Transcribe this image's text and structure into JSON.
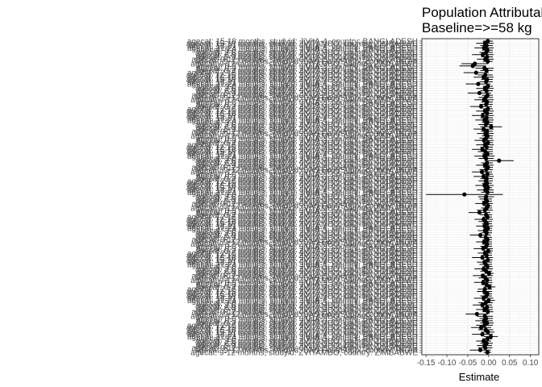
{
  "chart_data": {
    "type": "scatter",
    "title_lines": [
      "Population Attributable",
      "Baseline=>=58 kg"
    ],
    "xlabel": "Estimate",
    "ylabel": "",
    "xlim": [
      -0.16,
      0.12
    ],
    "xticks": [
      -0.15,
      -0.1,
      -0.05,
      0.0,
      0.05,
      0.1
    ],
    "xtick_labels": [
      "-0.15",
      "-0.10",
      "-0.05",
      "0.00",
      "0.05",
      "0.10"
    ],
    "grid": true,
    "error_bars": true,
    "categories": [
      "agecat: 9-12 months, studyid: ZVITAMBO, country: ZIMBABWE",
      "agecat: 9-12 months, studyid: SAS-FoodSuppl, country: INDIA",
      "agecat: 9-12 months, studyid: JiVitA-3, country: BANGLADESH",
      "agecat: 6-9 months, studyid: ZVITAMBO, country: ZIMBABWE",
      "agecat: 6-9 months, studyid: JiVitA-3, country: BANGLADESH",
      "agecat: 3-6 months, studyid: ZVITAMBO, country: ZIMBABWE",
      "agecat: 3-6 months, studyid: JiVitA-3, country: BANGLADESH",
      "agecat: 21-24 months, studyid: JiVitA-4, country: BANGLADESH",
      "agecat: 18-21 months, studyid: JiVitA-4, country: BANGLADESH",
      "agecat: 15-18 months, studyid: ZVITAMBO, country: ZIMBABWE",
      "agecat: 15-18 months, studyid: JiVitA-4, country: BANGLADESH",
      "agecat: 12-15 months, studyid: ZVITAMBO, country: ZIMBABWE",
      "agecat: 12-15 months, studyid: JiVitA-4, country: BANGLADESH",
      "agecat: 0-3 months, studyid: ZVITAMBO, country: ZIMBABWE",
      "agecat: 0-3 months, studyid: JiVitA-3, country: BANGLADESH",
      "agecat: 0-3 months, studyid: JiVitA-3, country: BANGLADESH"
    ],
    "series": [
      {
        "estimates": [
          -0.003,
          -0.02,
          -0.008,
          -0.01,
          -0.005,
          -0.012,
          -0.003,
          0.005,
          -0.015,
          -0.002,
          -0.007,
          -0.018,
          -0.01,
          -0.004,
          -0.011,
          -0.006,
          -0.009,
          -0.028,
          -0.002,
          -0.01,
          -0.004,
          -0.015,
          -0.007,
          0.0,
          -0.012,
          -0.006,
          -0.003,
          -0.01,
          -0.009,
          0.002,
          -0.005,
          -0.013,
          -0.004,
          -0.008,
          -0.014,
          0.001,
          -0.006,
          -0.012,
          -0.003,
          -0.007,
          -0.01,
          -0.002,
          -0.015,
          -0.005,
          -0.009,
          -0.001,
          -0.013,
          -0.006,
          -0.004,
          -0.011,
          -0.003,
          -0.007,
          -0.02,
          -0.005,
          -0.009,
          -0.002,
          -0.01,
          -0.004,
          -0.008,
          -0.012,
          -0.003,
          -0.006,
          -0.022,
          -0.009,
          -0.005,
          -0.002,
          -0.011,
          -0.004,
          -0.007,
          -0.006,
          -0.058,
          -0.003,
          -0.008,
          -0.002,
          -0.01,
          -0.004,
          -0.007,
          -0.005,
          -0.012,
          -0.003,
          -0.016,
          -0.006,
          -0.002,
          -0.009,
          -0.004,
          0.025,
          -0.006,
          -0.01,
          -0.003,
          -0.008,
          -0.015,
          -0.005,
          -0.009,
          -0.002,
          -0.011,
          -0.006,
          -0.003,
          -0.008,
          -0.004,
          -0.012,
          0.006,
          -0.007,
          -0.003,
          -0.01,
          -0.005,
          -0.014,
          -0.004,
          -0.009,
          -0.002,
          -0.018,
          -0.006,
          -0.004,
          -0.011,
          -0.007,
          -0.003,
          -0.022,
          -0.005,
          -0.009,
          -0.002,
          -0.025,
          -0.006,
          -0.004,
          -0.012,
          -0.008,
          -0.03,
          -0.005,
          -0.01,
          -0.038,
          -0.033,
          -0.002,
          -0.008,
          -0.004,
          -0.014,
          -0.006,
          -0.003,
          -0.011,
          -0.005,
          -0.009,
          -0.002
        ],
        "lower": [
          -0.012,
          -0.045,
          -0.025,
          -0.028,
          -0.02,
          -0.03,
          -0.015,
          -0.012,
          -0.04,
          -0.018,
          -0.025,
          -0.042,
          -0.03,
          -0.02,
          -0.032,
          -0.022,
          -0.028,
          -0.055,
          -0.015,
          -0.03,
          -0.018,
          -0.038,
          -0.024,
          -0.015,
          -0.035,
          -0.02,
          -0.014,
          -0.028,
          -0.026,
          -0.012,
          -0.018,
          -0.035,
          -0.016,
          -0.024,
          -0.038,
          -0.01,
          -0.02,
          -0.034,
          -0.015,
          -0.022,
          -0.028,
          -0.013,
          -0.04,
          -0.018,
          -0.026,
          -0.012,
          -0.036,
          -0.02,
          -0.016,
          -0.03,
          -0.014,
          -0.022,
          -0.045,
          -0.018,
          -0.026,
          -0.012,
          -0.03,
          -0.016,
          -0.024,
          -0.034,
          -0.014,
          -0.02,
          -0.048,
          -0.028,
          -0.018,
          -0.012,
          -0.032,
          -0.016,
          -0.022,
          -0.025,
          -0.15,
          -0.018,
          -0.028,
          -0.012,
          -0.032,
          -0.016,
          -0.024,
          -0.02,
          -0.036,
          -0.016,
          -0.04,
          -0.022,
          -0.014,
          -0.03,
          -0.018,
          -0.01,
          -0.024,
          -0.034,
          -0.016,
          -0.026,
          -0.04,
          -0.02,
          -0.03,
          -0.014,
          -0.034,
          -0.022,
          -0.016,
          -0.028,
          -0.018,
          -0.036,
          -0.02,
          -0.024,
          -0.016,
          -0.032,
          -0.02,
          -0.04,
          -0.018,
          -0.03,
          -0.014,
          -0.044,
          -0.022,
          -0.018,
          -0.034,
          -0.024,
          -0.016,
          -0.05,
          -0.02,
          -0.03,
          -0.014,
          -0.055,
          -0.022,
          -0.018,
          -0.036,
          -0.026,
          -0.06,
          -0.02,
          -0.032,
          -0.07,
          -0.065,
          -0.014,
          -0.028,
          -0.018,
          -0.04,
          -0.022,
          -0.016,
          -0.034,
          -0.02,
          -0.03,
          -0.014
        ],
        "upper": [
          0.006,
          0.005,
          0.009,
          0.008,
          0.01,
          0.006,
          0.009,
          0.022,
          0.01,
          0.014,
          0.011,
          0.006,
          0.01,
          0.012,
          0.01,
          0.01,
          0.01,
          -0.001,
          0.011,
          0.01,
          0.01,
          0.008,
          0.01,
          0.015,
          0.011,
          0.008,
          0.008,
          0.008,
          0.008,
          0.016,
          0.008,
          0.009,
          0.008,
          0.008,
          0.01,
          0.012,
          0.008,
          0.01,
          0.009,
          0.008,
          0.008,
          0.009,
          0.01,
          0.008,
          0.008,
          0.01,
          0.01,
          0.008,
          0.008,
          0.008,
          0.008,
          0.008,
          0.005,
          0.008,
          0.008,
          0.008,
          0.01,
          0.008,
          0.008,
          0.01,
          0.008,
          0.008,
          0.004,
          0.01,
          0.008,
          0.008,
          0.01,
          0.008,
          0.008,
          0.013,
          0.034,
          0.012,
          0.012,
          0.008,
          0.012,
          0.008,
          0.01,
          0.01,
          0.012,
          0.01,
          0.008,
          0.01,
          0.01,
          0.012,
          0.01,
          0.06,
          0.012,
          0.014,
          0.01,
          0.01,
          0.01,
          0.01,
          0.012,
          0.01,
          0.012,
          0.01,
          0.01,
          0.012,
          0.01,
          0.012,
          0.032,
          0.01,
          0.01,
          0.012,
          0.01,
          0.012,
          0.01,
          0.012,
          0.01,
          0.008,
          0.01,
          0.01,
          0.012,
          0.01,
          0.01,
          0.006,
          0.01,
          0.012,
          0.01,
          0.005,
          0.01,
          0.01,
          0.012,
          0.01,
          0.0,
          0.01,
          0.012,
          -0.006,
          -0.001,
          0.01,
          0.012,
          0.01,
          0.012,
          0.01,
          0.01,
          0.012,
          0.01,
          0.012,
          0.01
        ]
      }
    ]
  }
}
